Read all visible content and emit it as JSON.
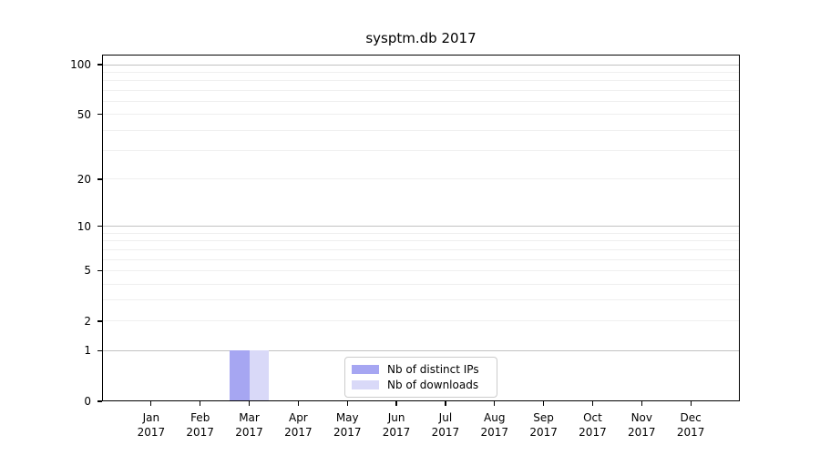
{
  "chart_data": {
    "type": "bar",
    "title": "sysptm.db 2017",
    "xlabel": "",
    "ylabel": "",
    "categories": [
      "Jan 2017",
      "Feb 2017",
      "Mar 2017",
      "Apr 2017",
      "May 2017",
      "Jun 2017",
      "Jul 2017",
      "Aug 2017",
      "Sep 2017",
      "Oct 2017",
      "Nov 2017",
      "Dec 2017"
    ],
    "series": [
      {
        "name": "Nb of distinct IPs",
        "color": "#a6a6f2",
        "values": [
          0,
          0,
          1,
          0,
          0,
          0,
          0,
          0,
          0,
          0,
          0,
          0
        ]
      },
      {
        "name": "Nb of downloads",
        "color": "#d9d9f8",
        "values": [
          0,
          0,
          1,
          0,
          0,
          0,
          0,
          0,
          0,
          0,
          0,
          0
        ]
      }
    ],
    "yscale": "log1p",
    "ylim": [
      0,
      115
    ],
    "yticks": [
      0,
      1,
      2,
      5,
      10,
      20,
      50,
      100
    ],
    "grid": {
      "major": [
        1,
        10,
        100
      ],
      "minor": [
        2,
        3,
        4,
        5,
        6,
        7,
        8,
        9,
        20,
        30,
        40,
        50,
        60,
        70,
        80,
        90
      ]
    },
    "legend": {
      "position": "bottom-center",
      "entries": [
        "Nb of distinct IPs",
        "Nb of downloads"
      ]
    }
  },
  "palette": {
    "background": "#ffffff",
    "spine": "#000000",
    "grid_major": "#c2c2c2",
    "grid_minor": "#efefef",
    "text": "#000000",
    "legend_border": "#cccccc"
  }
}
